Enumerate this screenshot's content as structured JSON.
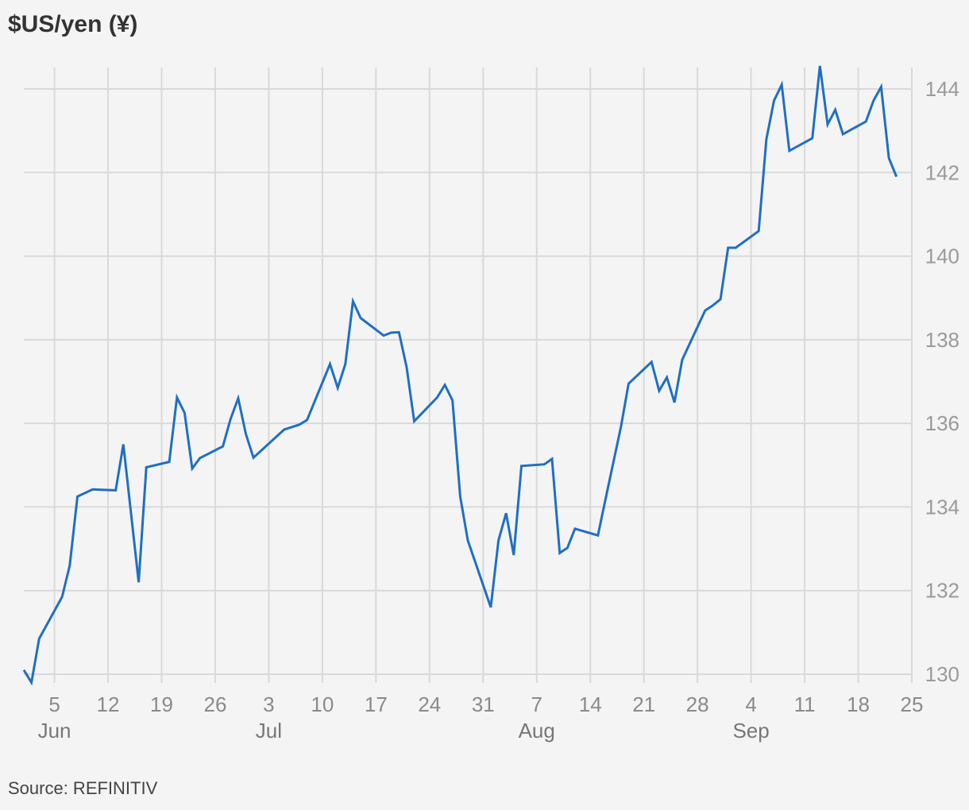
{
  "title": "$US/yen (¥)",
  "source": "Source: REFINITIV",
  "colors": {
    "line": "#1f6fc5",
    "grid": "#d9d9d9",
    "background": "#f4f4f4"
  },
  "chart_data": {
    "type": "line",
    "title": "$US/yen (¥)",
    "xlabel": "",
    "ylabel": "",
    "grid": true,
    "legend": "none",
    "y_axis_position": "right",
    "ylim": [
      130,
      144.6
    ],
    "y_ticks": [
      130,
      132,
      134,
      136,
      138,
      140,
      142,
      144
    ],
    "xlim": [
      "2023-06-01",
      "2023-09-25"
    ],
    "x_ticks": [
      {
        "date": "2023-06-05",
        "label": "5",
        "month": "Jun"
      },
      {
        "date": "2023-06-12",
        "label": "12"
      },
      {
        "date": "2023-06-19",
        "label": "19"
      },
      {
        "date": "2023-06-26",
        "label": "26"
      },
      {
        "date": "2023-07-03",
        "label": "3",
        "month": "Jul"
      },
      {
        "date": "2023-07-10",
        "label": "10"
      },
      {
        "date": "2023-07-17",
        "label": "17"
      },
      {
        "date": "2023-07-24",
        "label": "24"
      },
      {
        "date": "2023-07-31",
        "label": "31"
      },
      {
        "date": "2023-08-07",
        "label": "7",
        "month": "Aug"
      },
      {
        "date": "2023-08-14",
        "label": "14"
      },
      {
        "date": "2023-08-21",
        "label": "21"
      },
      {
        "date": "2023-08-28",
        "label": "28"
      },
      {
        "date": "2023-09-04",
        "label": "4",
        "month": "Sep"
      },
      {
        "date": "2023-09-11",
        "label": "11"
      },
      {
        "date": "2023-09-18",
        "label": "18"
      },
      {
        "date": "2023-09-25",
        "label": "25"
      }
    ],
    "series": [
      {
        "points": [
          [
            "2023-06-01",
            130.1
          ],
          [
            "2023-06-02",
            129.8
          ],
          [
            "2023-06-03",
            130.85
          ],
          [
            "2023-06-06",
            131.85
          ],
          [
            "2023-06-07",
            132.6
          ],
          [
            "2023-06-08",
            134.25
          ],
          [
            "2023-06-10",
            134.42
          ],
          [
            "2023-06-13",
            134.4
          ],
          [
            "2023-06-14",
            135.5
          ],
          [
            "2023-06-16",
            132.2
          ],
          [
            "2023-06-17",
            134.95
          ],
          [
            "2023-06-20",
            135.08
          ],
          [
            "2023-06-21",
            136.62
          ],
          [
            "2023-06-22",
            136.25
          ],
          [
            "2023-06-23",
            134.92
          ],
          [
            "2023-06-24",
            135.17
          ],
          [
            "2023-06-27",
            135.45
          ],
          [
            "2023-06-28",
            136.1
          ],
          [
            "2023-06-29",
            136.6
          ],
          [
            "2023-06-30",
            135.75
          ],
          [
            "2023-07-01",
            135.18
          ],
          [
            "2023-07-05",
            135.85
          ],
          [
            "2023-07-07",
            135.97
          ],
          [
            "2023-07-08",
            136.08
          ],
          [
            "2023-07-11",
            137.42
          ],
          [
            "2023-07-12",
            136.85
          ],
          [
            "2023-07-13",
            137.42
          ],
          [
            "2023-07-14",
            138.92
          ],
          [
            "2023-07-15",
            138.52
          ],
          [
            "2023-07-18",
            138.1
          ],
          [
            "2023-07-19",
            138.17
          ],
          [
            "2023-07-20",
            138.18
          ],
          [
            "2023-07-21",
            137.35
          ],
          [
            "2023-07-22",
            136.05
          ],
          [
            "2023-07-25",
            136.62
          ],
          [
            "2023-07-26",
            136.92
          ],
          [
            "2023-07-27",
            136.55
          ],
          [
            "2023-07-28",
            134.25
          ],
          [
            "2023-07-29",
            133.2
          ],
          [
            "2023-08-01",
            131.6
          ],
          [
            "2023-08-02",
            133.2
          ],
          [
            "2023-08-03",
            133.85
          ],
          [
            "2023-08-04",
            132.85
          ],
          [
            "2023-08-05",
            134.98
          ],
          [
            "2023-08-08",
            135.02
          ],
          [
            "2023-08-09",
            135.15
          ],
          [
            "2023-08-10",
            132.9
          ],
          [
            "2023-08-11",
            133.02
          ],
          [
            "2023-08-12",
            133.48
          ],
          [
            "2023-08-15",
            133.32
          ],
          [
            "2023-08-16",
            134.2
          ],
          [
            "2023-08-18",
            135.92
          ],
          [
            "2023-08-19",
            136.95
          ],
          [
            "2023-08-22",
            137.47
          ],
          [
            "2023-08-23",
            136.78
          ],
          [
            "2023-08-24",
            137.1
          ],
          [
            "2023-08-25",
            136.5
          ],
          [
            "2023-08-26",
            137.52
          ],
          [
            "2023-08-29",
            138.7
          ],
          [
            "2023-08-30",
            138.82
          ],
          [
            "2023-08-31",
            138.97
          ],
          [
            "2023-09-01",
            140.2
          ],
          [
            "2023-09-02",
            140.2
          ],
          [
            "2023-09-05",
            140.6
          ],
          [
            "2023-09-06",
            142.8
          ],
          [
            "2023-09-07",
            143.72
          ],
          [
            "2023-09-08",
            144.1
          ],
          [
            "2023-09-09",
            142.52
          ],
          [
            "2023-09-12",
            142.82
          ],
          [
            "2023-09-13",
            144.55
          ],
          [
            "2023-09-14",
            143.15
          ],
          [
            "2023-09-15",
            143.5
          ],
          [
            "2023-09-16",
            142.92
          ],
          [
            "2023-09-19",
            143.22
          ],
          [
            "2023-09-20",
            143.72
          ],
          [
            "2023-09-21",
            144.05
          ],
          [
            "2023-09-22",
            142.35
          ],
          [
            "2023-09-23",
            141.9
          ]
        ]
      }
    ]
  }
}
